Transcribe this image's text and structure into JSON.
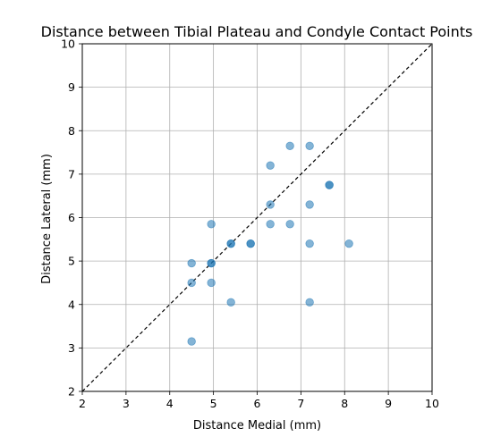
{
  "chart_data": {
    "type": "scatter",
    "title": "Distance between Tibial Plateau and Condyle Contact Points",
    "xlabel": "Distance Medial (mm)",
    "ylabel": "Distance Lateral (mm)",
    "xlim": [
      2,
      10
    ],
    "ylim": [
      2,
      10
    ],
    "xticks": [
      "2",
      "3",
      "4",
      "5",
      "6",
      "7",
      "8",
      "9",
      "10"
    ],
    "yticks": [
      "2",
      "3",
      "4",
      "5",
      "6",
      "7",
      "8",
      "9",
      "10"
    ],
    "grid": true,
    "reference_line": {
      "style": "dashed",
      "from": [
        2,
        2
      ],
      "to": [
        10,
        10
      ],
      "color": "#000000"
    },
    "point_color": "#1f77b4",
    "point_alpha": 0.55,
    "points": [
      {
        "x": 4.5,
        "y": 3.15
      },
      {
        "x": 4.5,
        "y": 4.5
      },
      {
        "x": 4.5,
        "y": 4.95
      },
      {
        "x": 4.95,
        "y": 4.5
      },
      {
        "x": 4.95,
        "y": 4.95
      },
      {
        "x": 4.95,
        "y": 4.95
      },
      {
        "x": 4.95,
        "y": 5.85
      },
      {
        "x": 5.4,
        "y": 4.05
      },
      {
        "x": 5.4,
        "y": 5.4
      },
      {
        "x": 5.4,
        "y": 5.4
      },
      {
        "x": 5.85,
        "y": 5.4
      },
      {
        "x": 5.85,
        "y": 5.4
      },
      {
        "x": 6.3,
        "y": 5.85
      },
      {
        "x": 6.3,
        "y": 6.3
      },
      {
        "x": 6.3,
        "y": 7.2
      },
      {
        "x": 6.75,
        "y": 5.85
      },
      {
        "x": 6.75,
        "y": 7.65
      },
      {
        "x": 7.2,
        "y": 4.05
      },
      {
        "x": 7.2,
        "y": 5.4
      },
      {
        "x": 7.2,
        "y": 6.3
      },
      {
        "x": 7.2,
        "y": 7.65
      },
      {
        "x": 7.65,
        "y": 6.75
      },
      {
        "x": 7.65,
        "y": 6.75
      },
      {
        "x": 8.1,
        "y": 5.4
      }
    ]
  }
}
